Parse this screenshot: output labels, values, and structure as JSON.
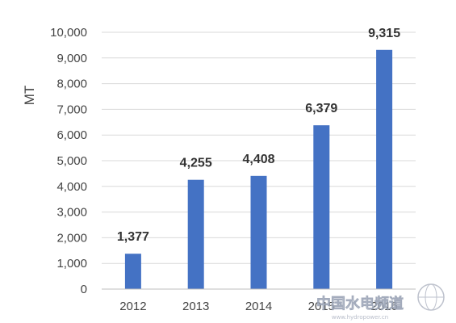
{
  "chart_data": {
    "type": "bar",
    "title": "",
    "xlabel": "",
    "ylabel": "MT",
    "categories": [
      "2012",
      "2013",
      "2014",
      "2015",
      "2016"
    ],
    "values": [
      1377,
      4255,
      4408,
      6379,
      9315
    ],
    "value_labels": [
      "1,377",
      "4,255",
      "4,408",
      "6,379",
      "9,315"
    ],
    "ylim": [
      0,
      10000
    ],
    "yticks": [
      "0",
      "1,000",
      "2,000",
      "3,000",
      "4,000",
      "5,000",
      "6,000",
      "7,000",
      "8,000",
      "9,000",
      "10,000"
    ],
    "grid": true,
    "legend": "none",
    "bar_color": "#4472c4"
  },
  "watermark": {
    "text": "中国水电频道",
    "subtext": "www.hydropower.cn"
  }
}
